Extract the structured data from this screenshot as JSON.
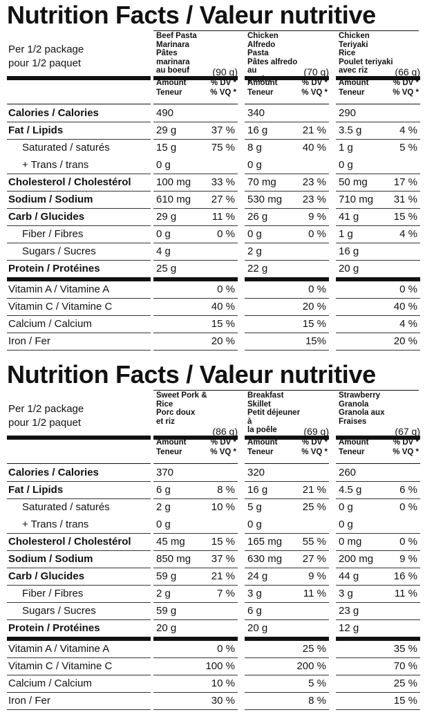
{
  "panels": [
    {
      "title": "Nutrition Facts / Valeur nutritive",
      "serving_en": "Per 1/2 package",
      "serving_fr": "pour 1/2 paquet",
      "products": [
        {
          "name": "Beef Pasta\nMarinara\nPâtes marinara\nau boeuf",
          "weight": "(90 g)"
        },
        {
          "name": "Chicken Alfredo\nPasta\nPâtes alfredo au\npoulet",
          "weight": "(70 g)"
        },
        {
          "name": "Chicken Teriyaki\nRice\nPoulet teriyaki\navec riz",
          "weight": "(66 g)"
        }
      ],
      "header": {
        "amount": "Amount",
        "teneur": "Teneur",
        "dv": "% DV *",
        "vq": "% VQ *"
      },
      "rows": [
        {
          "label": "Calories / Calories",
          "style": "bold",
          "cells": [
            [
              "490",
              ""
            ],
            [
              "340",
              ""
            ],
            [
              "290",
              ""
            ]
          ]
        },
        {
          "label": "Fat / Lipids",
          "style": "bold",
          "cells": [
            [
              "29 g",
              "37 %"
            ],
            [
              "16 g",
              "21 %"
            ],
            [
              "3.5 g",
              "4 %"
            ]
          ]
        },
        {
          "label": "Saturated / saturés",
          "style": "indent",
          "cells": [
            [
              "15 g",
              "75 %"
            ],
            [
              "8 g",
              "40 %"
            ],
            [
              "1 g",
              "5 %"
            ]
          ]
        },
        {
          "label": "+ Trans / trans",
          "style": "indent",
          "cells": [
            [
              "0 g",
              ""
            ],
            [
              "0 g",
              ""
            ],
            [
              "0 g",
              ""
            ]
          ]
        },
        {
          "label": "Cholesterol / Cholestérol",
          "style": "bold",
          "cells": [
            [
              "100 mg",
              "33 %"
            ],
            [
              "70 mg",
              "23 %"
            ],
            [
              "50 mg",
              "17 %"
            ]
          ]
        },
        {
          "label": "Sodium / Sodium",
          "style": "bold",
          "cells": [
            [
              "610 mg",
              "27 %"
            ],
            [
              "530 mg",
              "23 %"
            ],
            [
              "710 mg",
              "31 %"
            ]
          ]
        },
        {
          "label": "Carb / Glucides",
          "style": "bold",
          "cells": [
            [
              "29 g",
              "11 %"
            ],
            [
              "26 g",
              "9 %"
            ],
            [
              "41 g",
              "15 %"
            ]
          ]
        },
        {
          "label": "Fiber / Fibres",
          "style": "indent",
          "cells": [
            [
              "0 g",
              "0 %"
            ],
            [
              "0 g",
              "0 %"
            ],
            [
              "1 g",
              "4 %"
            ]
          ]
        },
        {
          "label": "Sugars / Sucres",
          "style": "indent",
          "cells": [
            [
              "4 g",
              ""
            ],
            [
              "2 g",
              ""
            ],
            [
              "16 g",
              ""
            ]
          ]
        },
        {
          "label": "Protein / Protéines",
          "style": "bold",
          "cells": [
            [
              "25 g",
              ""
            ],
            [
              "22 g",
              ""
            ],
            [
              "20 g",
              ""
            ]
          ]
        },
        {
          "label": "Vitamin A / Vitamine A",
          "style": "plain",
          "cells": [
            [
              "",
              "0 %"
            ],
            [
              "",
              "0 %"
            ],
            [
              "",
              "0 %"
            ]
          ]
        },
        {
          "label": "Vitamin C / Vitamine C",
          "style": "plain",
          "cells": [
            [
              "",
              "40 %"
            ],
            [
              "",
              "20 %"
            ],
            [
              "",
              "40 %"
            ]
          ]
        },
        {
          "label": "Calcium / Calcium",
          "style": "plain",
          "cells": [
            [
              "",
              "15 %"
            ],
            [
              "",
              "15 %"
            ],
            [
              "",
              "4 %"
            ]
          ]
        },
        {
          "label": "Iron / Fer",
          "style": "plain",
          "cells": [
            [
              "",
              "20 %"
            ],
            [
              "",
              "15%"
            ],
            [
              "",
              "20 %"
            ]
          ]
        }
      ]
    },
    {
      "title": "Nutrition Facts / Valeur nutritive",
      "serving_en": "Per 1/2 package",
      "serving_fr": "pour 1/2 paquet",
      "products": [
        {
          "name": "Sweet Pork &\nRice\nPorc doux\net riz",
          "weight": "(86 g)"
        },
        {
          "name": "Breakfast Skillet\nPetit déjeuner à\nla poêle",
          "weight": "(69 g)"
        },
        {
          "name": "Strawberry Granola\nGranola aux Fraises",
          "weight": "(67 g)"
        }
      ],
      "header": {
        "amount": "Amount",
        "teneur": "Teneur",
        "dv": "% DV *",
        "vq": "% VQ *"
      },
      "rows": [
        {
          "label": "Calories / Calories",
          "style": "bold",
          "cells": [
            [
              "370",
              ""
            ],
            [
              "320",
              ""
            ],
            [
              "260",
              ""
            ]
          ]
        },
        {
          "label": "Fat / Lipids",
          "style": "bold",
          "cells": [
            [
              "6 g",
              "8 %"
            ],
            [
              "16 g",
              "21 %"
            ],
            [
              "4.5 g",
              "6 %"
            ]
          ]
        },
        {
          "label": "Saturated / saturés",
          "style": "indent",
          "cells": [
            [
              "2 g",
              "10 %"
            ],
            [
              "5 g",
              "25 %"
            ],
            [
              "0 g",
              "0 %"
            ]
          ]
        },
        {
          "label": "+ Trans / trans",
          "style": "indent",
          "cells": [
            [
              "0 g",
              ""
            ],
            [
              "0 g",
              ""
            ],
            [
              "0 g",
              ""
            ]
          ]
        },
        {
          "label": "Cholesterol / Cholestérol",
          "style": "bold",
          "cells": [
            [
              "45 mg",
              "15 %"
            ],
            [
              "165 mg",
              "55 %"
            ],
            [
              "0 mg",
              "0 %"
            ]
          ]
        },
        {
          "label": "Sodium / Sodium",
          "style": "bold",
          "cells": [
            [
              "850 mg",
              "37 %"
            ],
            [
              "630 mg",
              "27 %"
            ],
            [
              "200 mg",
              "9 %"
            ]
          ]
        },
        {
          "label": "Carb / Glucides",
          "style": "bold",
          "cells": [
            [
              "59 g",
              "21 %"
            ],
            [
              "24 g",
              "9 %"
            ],
            [
              "44 g",
              "16 %"
            ]
          ]
        },
        {
          "label": "Fiber / Fibres",
          "style": "indent",
          "cells": [
            [
              "2 g",
              "7 %"
            ],
            [
              "3 g",
              "11 %"
            ],
            [
              "3 g",
              "11 %"
            ]
          ]
        },
        {
          "label": "Sugars / Sucres",
          "style": "indent",
          "cells": [
            [
              "59 g",
              ""
            ],
            [
              "6 g",
              ""
            ],
            [
              "23 g",
              ""
            ]
          ]
        },
        {
          "label": "Protein / Protéines",
          "style": "bold",
          "cells": [
            [
              "20 g",
              ""
            ],
            [
              "20 g",
              ""
            ],
            [
              "12 g",
              ""
            ]
          ]
        },
        {
          "label": "Vitamin A / Vitamine A",
          "style": "plain",
          "cells": [
            [
              "",
              "0 %"
            ],
            [
              "",
              "25 %"
            ],
            [
              "",
              "35 %"
            ]
          ]
        },
        {
          "label": "Vitamin C / Vitamine C",
          "style": "plain",
          "cells": [
            [
              "",
              "100 %"
            ],
            [
              "",
              "200 %"
            ],
            [
              "",
              "70 %"
            ]
          ]
        },
        {
          "label": "Calcium / Calcium",
          "style": "plain",
          "cells": [
            [
              "",
              "10 %"
            ],
            [
              "",
              "5 %"
            ],
            [
              "",
              "25 %"
            ]
          ]
        },
        {
          "label": "Iron / Fer",
          "style": "plain",
          "cells": [
            [
              "",
              "30 %"
            ],
            [
              "",
              "8 %"
            ],
            [
              "",
              "15 %"
            ]
          ]
        }
      ]
    }
  ]
}
